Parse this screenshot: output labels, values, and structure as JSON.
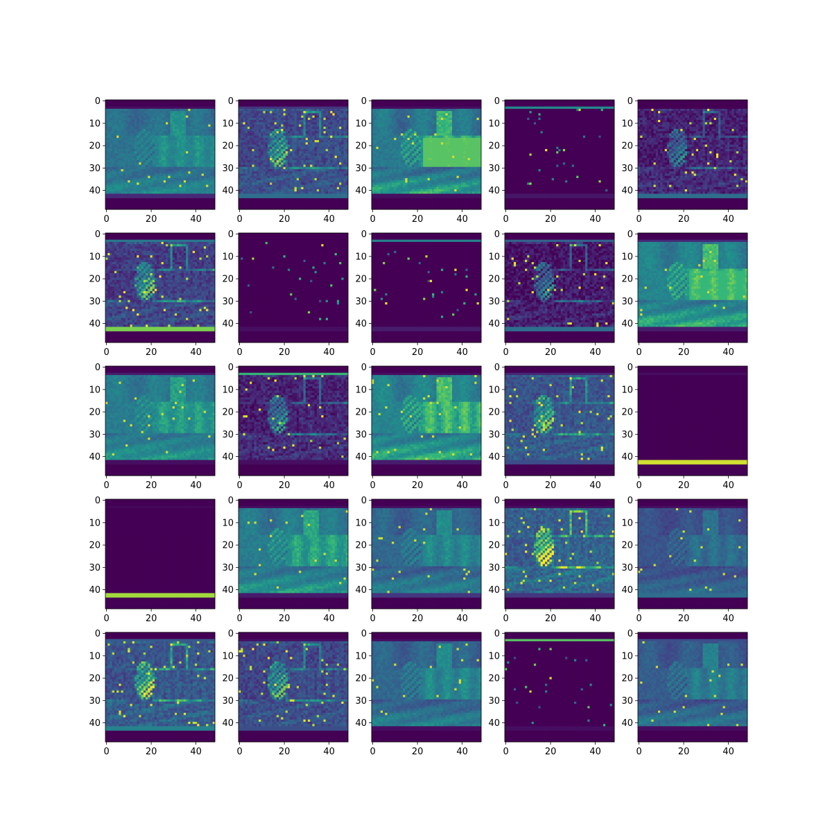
{
  "chart_data": {
    "type": "heatmap",
    "grid": {
      "rows": 5,
      "cols": 5
    },
    "colormap": "viridis",
    "colors": {
      "low": "#440154",
      "mid": "#21918c",
      "high": "#fde725"
    },
    "image_size": [
      49,
      49
    ],
    "xlim": [
      0,
      48
    ],
    "ylim": [
      48,
      0
    ],
    "x_ticks": [
      0,
      20,
      40
    ],
    "y_ticks": [
      0,
      10,
      20,
      30,
      40
    ],
    "x_tick_labels": [
      "0",
      "20",
      "40"
    ],
    "y_tick_labels": [
      "0",
      "10",
      "20",
      "30",
      "40"
    ],
    "title": "",
    "xlabel": "",
    "ylabel": "",
    "panels": [
      {
        "kind": "scene",
        "base": 0.5,
        "contrast": 0.25,
        "hi": 0.2,
        "top": 0.05,
        "bottom": 0.15
      },
      {
        "kind": "edge",
        "base": 0.25,
        "contrast": 0.35,
        "hi": 0.4,
        "top": 0.2,
        "bottom": 0.45
      },
      {
        "kind": "scene",
        "base": 0.55,
        "contrast": 0.4,
        "hi": 0.8,
        "top": 0.05,
        "bottom": 0.05
      },
      {
        "kind": "sparse",
        "base": 0.0,
        "contrast": 0.0,
        "hi": 0.0,
        "top": 0.6,
        "bottom": 0.08
      },
      {
        "kind": "edge",
        "base": 0.1,
        "contrast": 0.3,
        "hi": 0.3,
        "top": 0.0,
        "bottom": 0.45
      },
      {
        "kind": "edge",
        "base": 0.2,
        "contrast": 0.4,
        "hi": 0.3,
        "top": 0.5,
        "bottom": 0.85
      },
      {
        "kind": "sparse",
        "base": 0.0,
        "contrast": 0.0,
        "hi": 0.0,
        "top": 0.0,
        "bottom": 0.05
      },
      {
        "kind": "sparse",
        "base": 0.0,
        "contrast": 0.0,
        "hi": 0.0,
        "top": 0.55,
        "bottom": 0.1
      },
      {
        "kind": "edge",
        "base": 0.05,
        "contrast": 0.35,
        "hi": 0.3,
        "top": 0.4,
        "bottom": 0.45
      },
      {
        "kind": "scene",
        "base": 0.6,
        "contrast": 0.35,
        "hi": 0.75,
        "top": 0.15,
        "bottom": 0.1
      },
      {
        "kind": "scene",
        "base": 0.55,
        "contrast": 0.25,
        "hi": 0.55,
        "top": 0.1,
        "bottom": 0.05
      },
      {
        "kind": "edge",
        "base": 0.1,
        "contrast": 0.35,
        "hi": 0.2,
        "top": 0.75,
        "bottom": 0.05
      },
      {
        "kind": "scene",
        "base": 0.6,
        "contrast": 0.35,
        "hi": 0.6,
        "top": 0.05,
        "bottom": 0.1
      },
      {
        "kind": "edge",
        "base": 0.3,
        "contrast": 0.35,
        "hi": 0.2,
        "top": 0.15,
        "bottom": 0.3
      },
      {
        "kind": "blank",
        "base": 0.0,
        "contrast": 0.0,
        "hi": 0.0,
        "top": 0.05,
        "bottom": 0.95
      },
      {
        "kind": "blank",
        "base": 0.0,
        "contrast": 0.0,
        "hi": 0.0,
        "top": 0.03,
        "bottom": 0.9
      },
      {
        "kind": "scene",
        "base": 0.55,
        "contrast": 0.3,
        "hi": 0.55,
        "top": 0.05,
        "bottom": 0.1
      },
      {
        "kind": "scene",
        "base": 0.45,
        "contrast": 0.3,
        "hi": 0.3,
        "top": 0.05,
        "bottom": 0.2
      },
      {
        "kind": "edge",
        "base": 0.35,
        "contrast": 0.45,
        "hi": 0.3,
        "top": 0.05,
        "bottom": 0.2
      },
      {
        "kind": "scene",
        "base": 0.35,
        "contrast": 0.25,
        "hi": 0.15,
        "top": 0.05,
        "bottom": 0.45
      },
      {
        "kind": "edge",
        "base": 0.3,
        "contrast": 0.4,
        "hi": 0.3,
        "top": 0.35,
        "bottom": 0.55
      },
      {
        "kind": "edge",
        "base": 0.25,
        "contrast": 0.35,
        "hi": 0.3,
        "top": 0.05,
        "bottom": 0.3
      },
      {
        "kind": "scene",
        "base": 0.45,
        "contrast": 0.3,
        "hi": 0.35,
        "top": 0.05,
        "bottom": 0.05
      },
      {
        "kind": "sparse",
        "base": 0.0,
        "contrast": 0.0,
        "hi": 0.0,
        "top": 0.8,
        "bottom": 0.05
      },
      {
        "kind": "scene",
        "base": 0.4,
        "contrast": 0.3,
        "hi": 0.5,
        "top": 0.3,
        "bottom": 0.05
      }
    ]
  }
}
